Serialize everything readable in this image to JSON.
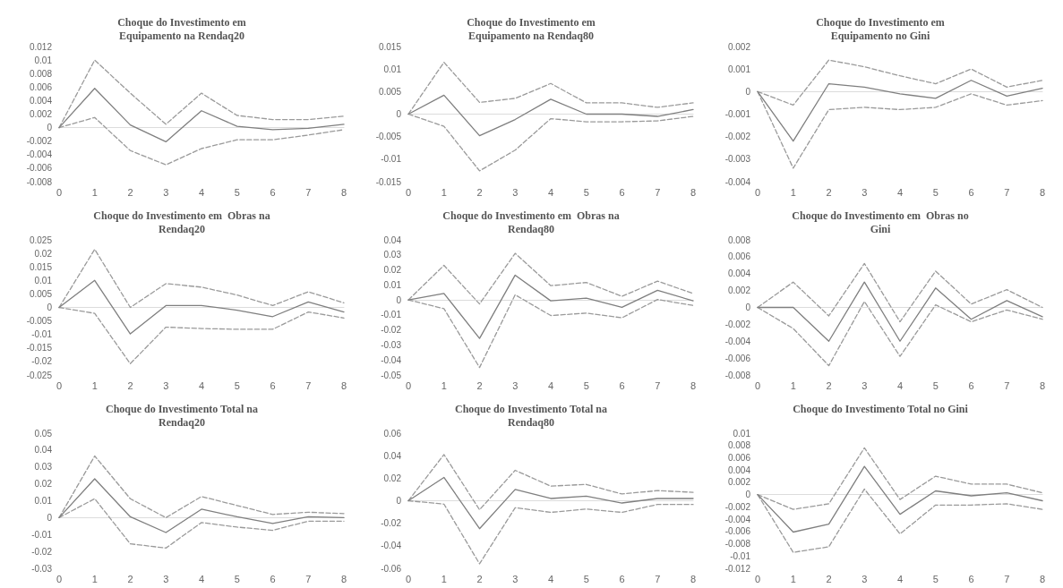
{
  "chart_data": [
    {
      "type": "line",
      "title": "Choque do Investimento em\nEquipamento na Rendaq20",
      "categories": [
        "0",
        "1",
        "2",
        "3",
        "4",
        "5",
        "6",
        "7",
        "8"
      ],
      "ylim": [
        -0.008,
        0.012
      ],
      "yticks": [
        -0.008,
        -0.006,
        -0.004,
        -0.002,
        0,
        0.002,
        0.004,
        0.006,
        0.008,
        0.01,
        0.012
      ],
      "marker": "none",
      "series": [
        {
          "color": "#7f7f7f",
          "line_style": "solid",
          "values": [
            0,
            0.0058,
            0.0004,
            -0.0021,
            0.0025,
            0.0002,
            -0.0003,
            -0.0001,
            0.0005
          ]
        },
        {
          "color": "#9a9a9a",
          "line_style": "dashed",
          "values": [
            0,
            0.01,
            0.0051,
            0.0005,
            0.0051,
            0.0018,
            0.0012,
            0.0012,
            0.0017
          ]
        },
        {
          "color": "#9a9a9a",
          "line_style": "dashed",
          "values": [
            0,
            0.0015,
            -0.0034,
            -0.0055,
            -0.0031,
            -0.0018,
            -0.0018,
            -0.0011,
            -0.0003
          ]
        }
      ]
    },
    {
      "type": "line",
      "title": "Choque do Investimento em\nEquipamento na Rendaq80",
      "categories": [
        "0",
        "1",
        "2",
        "3",
        "4",
        "5",
        "6",
        "7",
        "8"
      ],
      "ylim": [
        -0.015,
        0.015
      ],
      "yticks": [
        -0.015,
        -0.01,
        -0.005,
        0,
        0.005,
        0.01,
        0.015
      ],
      "marker": "none",
      "series": [
        {
          "color": "#7f7f7f",
          "line_style": "solid",
          "values": [
            0,
            0.0042,
            -0.0048,
            -0.0012,
            0.0033,
            0,
            0,
            -0.0005,
            0.001
          ]
        },
        {
          "color": "#9a9a9a",
          "line_style": "dashed",
          "values": [
            0,
            0.0115,
            0.0026,
            0.0035,
            0.0068,
            0.0025,
            0.0025,
            0.0015,
            0.0025
          ]
        },
        {
          "color": "#9a9a9a",
          "line_style": "dashed",
          "values": [
            0,
            -0.0027,
            -0.0126,
            -0.008,
            -0.001,
            -0.0017,
            -0.0017,
            -0.0015,
            -0.0005
          ]
        }
      ]
    },
    {
      "type": "line",
      "title": "Choque do Investimento em\nEquipamento no Gini",
      "categories": [
        "0",
        "1",
        "2",
        "3",
        "4",
        "5",
        "6",
        "7",
        "8"
      ],
      "ylim": [
        -0.004,
        0.002
      ],
      "yticks": [
        -0.004,
        -0.003,
        -0.002,
        -0.001,
        0,
        0.001,
        0.002
      ],
      "marker": "none",
      "series": [
        {
          "color": "#7f7f7f",
          "line_style": "solid",
          "values": [
            0,
            -0.0022,
            0.00035,
            0.0002,
            -0.0001,
            -0.0003,
            0.0005,
            -0.0002,
            0.00015
          ]
        },
        {
          "color": "#9a9a9a",
          "line_style": "dashed",
          "values": [
            0,
            -0.0006,
            0.0014,
            0.0011,
            0.0007,
            0.00035,
            0.001,
            0.0002,
            0.0005
          ]
        },
        {
          "color": "#9a9a9a",
          "line_style": "dashed",
          "values": [
            0,
            -0.0034,
            -0.0008,
            -0.0007,
            -0.0008,
            -0.0007,
            -0.0001,
            -0.0006,
            -0.0004
          ]
        }
      ]
    },
    {
      "type": "line",
      "title": "Choque do Investimento em  Obras na\nRendaq20",
      "categories": [
        "0",
        "1",
        "2",
        "3",
        "4",
        "5",
        "6",
        "7",
        "8"
      ],
      "ylim": [
        -0.025,
        0.025
      ],
      "yticks": [
        -0.025,
        -0.02,
        -0.015,
        -0.01,
        -0.005,
        0,
        0.005,
        0.01,
        0.015,
        0.02,
        0.025
      ],
      "marker": "none",
      "series": [
        {
          "color": "#7f7f7f",
          "line_style": "solid",
          "values": [
            0,
            0.01,
            -0.0098,
            0.0007,
            0.0007,
            -0.001,
            -0.0034,
            0.002,
            -0.0017
          ]
        },
        {
          "color": "#9a9a9a",
          "line_style": "dashed",
          "values": [
            0,
            0.0215,
            0,
            0.0088,
            0.0075,
            0.0046,
            0.0007,
            0.0058,
            0.0017
          ]
        },
        {
          "color": "#9a9a9a",
          "line_style": "dashed",
          "values": [
            0,
            -0.0022,
            -0.0208,
            -0.0073,
            -0.0078,
            -0.0081,
            -0.0081,
            -0.0017,
            -0.0039
          ]
        }
      ]
    },
    {
      "type": "line",
      "title": "Choque do Investimento em  Obras na\nRendaq80",
      "categories": [
        "0",
        "1",
        "2",
        "3",
        "4",
        "5",
        "6",
        "7",
        "8"
      ],
      "ylim": [
        -0.05,
        0.04
      ],
      "yticks": [
        -0.05,
        -0.04,
        -0.03,
        -0.02,
        -0.01,
        0,
        0.01,
        0.02,
        0.03,
        0.04
      ],
      "marker": "none",
      "series": [
        {
          "color": "#7f7f7f",
          "line_style": "solid",
          "values": [
            0,
            0.0043,
            -0.0256,
            0.0165,
            -0.0006,
            0.0012,
            -0.0049,
            0.0064,
            -0.0006
          ]
        },
        {
          "color": "#9a9a9a",
          "line_style": "dashed",
          "values": [
            0,
            0.023,
            -0.0027,
            0.031,
            0.0095,
            0.0116,
            0.0024,
            0.0125,
            0.0043
          ]
        },
        {
          "color": "#9a9a9a",
          "line_style": "dashed",
          "values": [
            0,
            -0.0058,
            -0.045,
            0.0034,
            -0.0104,
            -0.0088,
            -0.0119,
            0.0003,
            -0.0037
          ]
        }
      ]
    },
    {
      "type": "line",
      "title": "Choque do Investimento em  Obras no\nGini",
      "categories": [
        "0",
        "1",
        "2",
        "3",
        "4",
        "5",
        "6",
        "7",
        "8"
      ],
      "ylim": [
        -0.008,
        0.008
      ],
      "yticks": [
        -0.008,
        -0.006,
        -0.004,
        -0.002,
        0,
        0.002,
        0.004,
        0.006,
        0.008
      ],
      "marker": "none",
      "series": [
        {
          "color": "#7f7f7f",
          "line_style": "solid",
          "values": [
            0,
            0,
            -0.004,
            0.003,
            -0.004,
            0.0023,
            -0.0014,
            0.0008,
            -0.0011
          ]
        },
        {
          "color": "#9a9a9a",
          "line_style": "dashed",
          "values": [
            0,
            0.003,
            -0.001,
            0.0052,
            -0.0017,
            0.0043,
            0.0004,
            0.0021,
            0
          ]
        },
        {
          "color": "#9a9a9a",
          "line_style": "dashed",
          "values": [
            0,
            -0.0025,
            -0.0069,
            0.0007,
            -0.0058,
            0.0003,
            -0.0017,
            -0.0003,
            -0.0014
          ]
        }
      ]
    },
    {
      "type": "line",
      "title": "Choque do Investimento Total na\nRendaq20",
      "categories": [
        "0",
        "1",
        "2",
        "3",
        "4",
        "5",
        "6",
        "7",
        "8"
      ],
      "ylim": [
        -0.03,
        0.05
      ],
      "yticks": [
        -0.03,
        -0.02,
        -0.01,
        0,
        0.01,
        0.02,
        0.03,
        0.04,
        0.05
      ],
      "marker": "none",
      "series": [
        {
          "color": "#7f7f7f",
          "line_style": "solid",
          "values": [
            0,
            0.023,
            0.0005,
            -0.0088,
            0.005,
            0.0005,
            -0.0035,
            0.0005,
            0
          ]
        },
        {
          "color": "#9a9a9a",
          "line_style": "dashed",
          "values": [
            0,
            0.0365,
            0.0112,
            0,
            0.0125,
            0.0072,
            0.0019,
            0.0032,
            0.0024
          ]
        },
        {
          "color": "#9a9a9a",
          "line_style": "dashed",
          "values": [
            0,
            0.0112,
            -0.0155,
            -0.018,
            -0.0029,
            -0.0056,
            -0.0075,
            -0.0021,
            -0.0021
          ]
        }
      ]
    },
    {
      "type": "line",
      "title": "Choque do Investimento Total na\nRendaq80",
      "categories": [
        "0",
        "1",
        "2",
        "3",
        "4",
        "5",
        "6",
        "7",
        "8"
      ],
      "ylim": [
        -0.06,
        0.06
      ],
      "yticks": [
        -0.06,
        -0.04,
        -0.02,
        0,
        0.02,
        0.04,
        0.06
      ],
      "marker": "none",
      "series": [
        {
          "color": "#7f7f7f",
          "line_style": "solid",
          "values": [
            0,
            0.0207,
            -0.0248,
            0.01,
            0.002,
            0.004,
            -0.002,
            0.002,
            0.002
          ]
        },
        {
          "color": "#9a9a9a",
          "line_style": "dashed",
          "values": [
            0,
            0.041,
            -0.008,
            0.027,
            0.013,
            0.0145,
            0.006,
            0.009,
            0.0075
          ]
        },
        {
          "color": "#9a9a9a",
          "line_style": "dashed",
          "values": [
            0,
            -0.003,
            -0.056,
            -0.0062,
            -0.0103,
            -0.0074,
            -0.0103,
            -0.0033,
            -0.0033
          ]
        }
      ]
    },
    {
      "type": "line",
      "title": "Choque do Investimento Total no Gini",
      "categories": [
        "0",
        "1",
        "2",
        "3",
        "4",
        "5",
        "6",
        "7",
        "8"
      ],
      "ylim": [
        -0.012,
        0.01
      ],
      "yticks": [
        -0.012,
        -0.01,
        -0.008,
        -0.006,
        -0.004,
        -0.002,
        0,
        0.002,
        0.004,
        0.006,
        0.008,
        0.01
      ],
      "marker": "none",
      "series": [
        {
          "color": "#7f7f7f",
          "line_style": "solid",
          "values": [
            0,
            -0.0061,
            -0.0048,
            0.0046,
            -0.0032,
            0.0006,
            -0.0002,
            0.0003,
            -0.001
          ]
        },
        {
          "color": "#9a9a9a",
          "line_style": "dashed",
          "values": [
            0,
            -0.0024,
            -0.0015,
            0.0076,
            -0.0008,
            0.003,
            0.0017,
            0.0017,
            0.0003
          ]
        },
        {
          "color": "#9a9a9a",
          "line_style": "dashed",
          "values": [
            0,
            -0.0094,
            -0.0085,
            0.0009,
            -0.0064,
            -0.0017,
            -0.0017,
            -0.0015,
            -0.0024
          ]
        }
      ]
    }
  ]
}
